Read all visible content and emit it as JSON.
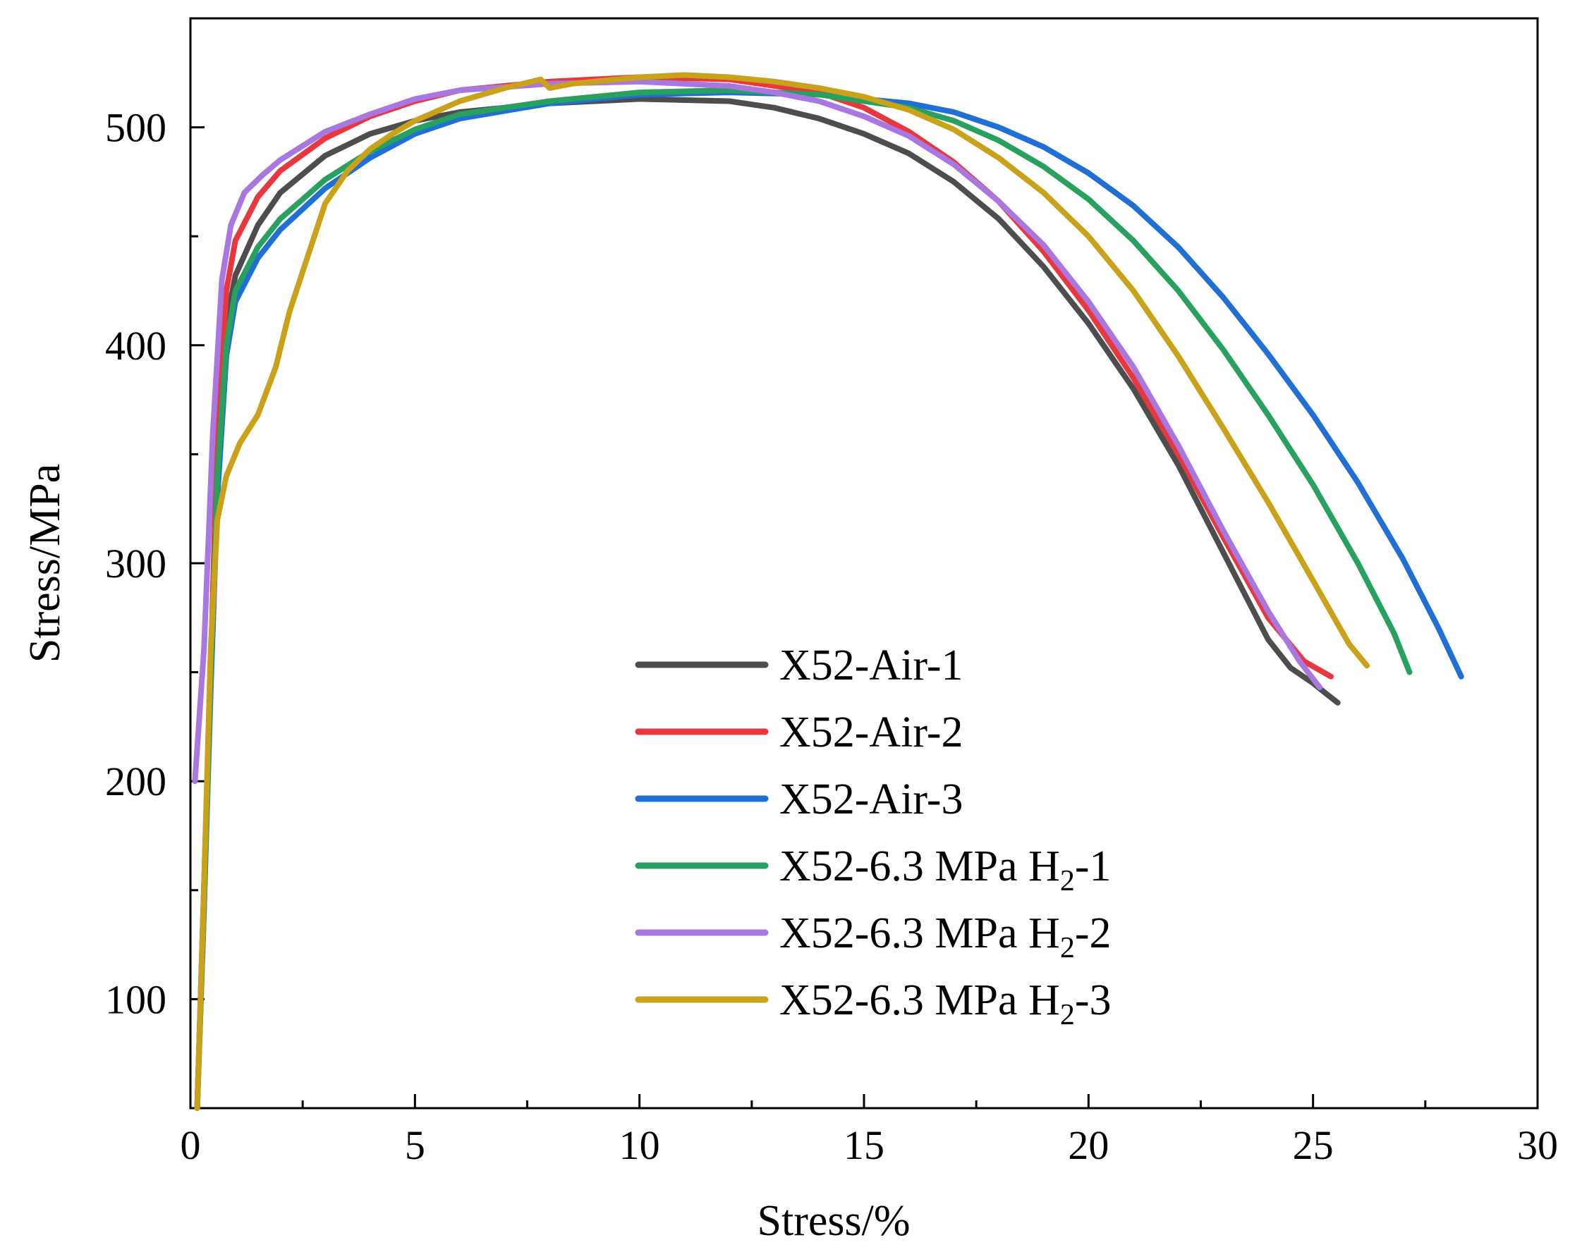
{
  "chart_data": {
    "type": "line",
    "xlabel": "Stress/%",
    "ylabel": "Stress/MPa",
    "xlim": [
      0,
      30
    ],
    "ylim": [
      50,
      550
    ],
    "x_ticks": [
      0,
      5,
      10,
      15,
      20,
      25,
      30
    ],
    "y_ticks": [
      100,
      200,
      300,
      400,
      500
    ],
    "x_tick_labels": [
      "0",
      "5",
      "10",
      "15",
      "20",
      "25",
      "30"
    ],
    "y_tick_labels": [
      "100",
      "200",
      "300",
      "400",
      "500"
    ],
    "grid": false,
    "legend_position": "bottom-right",
    "series": [
      {
        "name": "X52-Air-1",
        "label_main": "X52-Air-1",
        "label_sub": "",
        "label_tail": "",
        "color": "#4d4d4d",
        "points": [
          [
            0.15,
            50
          ],
          [
            0.3,
            150
          ],
          [
            0.45,
            250
          ],
          [
            0.6,
            350
          ],
          [
            0.8,
            410
          ],
          [
            1.0,
            432
          ],
          [
            1.5,
            455
          ],
          [
            2.0,
            470
          ],
          [
            3.0,
            487
          ],
          [
            4.0,
            497
          ],
          [
            5.0,
            503
          ],
          [
            6.0,
            507
          ],
          [
            8.0,
            511
          ],
          [
            10.0,
            513
          ],
          [
            12.0,
            512
          ],
          [
            13.0,
            509
          ],
          [
            14.0,
            504
          ],
          [
            15.0,
            497
          ],
          [
            16.0,
            488
          ],
          [
            17.0,
            475
          ],
          [
            18.0,
            458
          ],
          [
            19.0,
            436
          ],
          [
            20.0,
            410
          ],
          [
            21.0,
            380
          ],
          [
            22.0,
            345
          ],
          [
            23.0,
            305
          ],
          [
            24.0,
            265
          ],
          [
            24.5,
            252
          ],
          [
            25.0,
            245
          ],
          [
            25.3,
            240
          ],
          [
            25.55,
            236
          ]
        ]
      },
      {
        "name": "X52-Air-2",
        "label_main": "X52-Air-2",
        "label_sub": "",
        "label_tail": "",
        "color": "#e8383d",
        "points": [
          [
            0.15,
            50
          ],
          [
            0.3,
            150
          ],
          [
            0.45,
            250
          ],
          [
            0.6,
            360
          ],
          [
            0.8,
            425
          ],
          [
            1.0,
            448
          ],
          [
            1.5,
            468
          ],
          [
            2.0,
            480
          ],
          [
            3.0,
            495
          ],
          [
            4.0,
            505
          ],
          [
            5.0,
            512
          ],
          [
            6.0,
            517
          ],
          [
            8.0,
            521
          ],
          [
            10.0,
            523
          ],
          [
            12.0,
            522
          ],
          [
            14.0,
            516
          ],
          [
            15.0,
            509
          ],
          [
            16.0,
            498
          ],
          [
            17.0,
            484
          ],
          [
            18.0,
            466
          ],
          [
            19.0,
            443
          ],
          [
            20.0,
            416
          ],
          [
            21.0,
            385
          ],
          [
            22.0,
            350
          ],
          [
            23.0,
            312
          ],
          [
            24.0,
            275
          ],
          [
            24.8,
            255
          ],
          [
            25.4,
            248
          ]
        ]
      },
      {
        "name": "X52-Air-3",
        "label_main": "X52-Air-3",
        "label_sub": "",
        "label_tail": "",
        "color": "#1f6fd6",
        "points": [
          [
            0.15,
            50
          ],
          [
            0.3,
            140
          ],
          [
            0.45,
            240
          ],
          [
            0.6,
            330
          ],
          [
            0.8,
            395
          ],
          [
            1.0,
            420
          ],
          [
            1.5,
            440
          ],
          [
            2.0,
            453
          ],
          [
            3.0,
            472
          ],
          [
            4.0,
            486
          ],
          [
            5.0,
            497
          ],
          [
            6.0,
            504
          ],
          [
            8.0,
            511
          ],
          [
            10.0,
            515
          ],
          [
            12.0,
            516
          ],
          [
            14.0,
            515
          ],
          [
            16.0,
            511
          ],
          [
            17.0,
            507
          ],
          [
            18.0,
            500
          ],
          [
            19.0,
            491
          ],
          [
            20.0,
            479
          ],
          [
            21.0,
            464
          ],
          [
            22.0,
            445
          ],
          [
            23.0,
            422
          ],
          [
            24.0,
            396
          ],
          [
            25.0,
            368
          ],
          [
            26.0,
            337
          ],
          [
            27.0,
            302
          ],
          [
            27.8,
            270
          ],
          [
            28.3,
            248
          ]
        ]
      },
      {
        "name": "X52-6.3 MPa H2-1",
        "label_main": "X52-6.3 MPa H",
        "label_sub": "2",
        "label_tail": "-1",
        "color": "#27a060",
        "points": [
          [
            0.15,
            50
          ],
          [
            0.3,
            140
          ],
          [
            0.45,
            245
          ],
          [
            0.6,
            340
          ],
          [
            0.8,
            400
          ],
          [
            1.0,
            425
          ],
          [
            1.5,
            445
          ],
          [
            2.0,
            458
          ],
          [
            3.0,
            476
          ],
          [
            4.0,
            489
          ],
          [
            5.0,
            499
          ],
          [
            6.0,
            506
          ],
          [
            8.0,
            512
          ],
          [
            10.0,
            516
          ],
          [
            12.0,
            517
          ],
          [
            14.0,
            515
          ],
          [
            16.0,
            509
          ],
          [
            17.0,
            503
          ],
          [
            18.0,
            494
          ],
          [
            19.0,
            482
          ],
          [
            20.0,
            467
          ],
          [
            21.0,
            448
          ],
          [
            22.0,
            425
          ],
          [
            23.0,
            398
          ],
          [
            24.0,
            368
          ],
          [
            25.0,
            336
          ],
          [
            26.0,
            300
          ],
          [
            26.8,
            268
          ],
          [
            27.15,
            250
          ]
        ]
      },
      {
        "name": "X52-6.3 MPa H2-2",
        "label_main": "X52-6.3 MPa H",
        "label_sub": "2",
        "label_tail": "-2",
        "color": "#a877e0",
        "points": [
          [
            0.1,
            200
          ],
          [
            0.3,
            260
          ],
          [
            0.5,
            360
          ],
          [
            0.7,
            430
          ],
          [
            0.9,
            455
          ],
          [
            1.2,
            470
          ],
          [
            1.6,
            478
          ],
          [
            2.0,
            485
          ],
          [
            3.0,
            498
          ],
          [
            4.0,
            506
          ],
          [
            5.0,
            513
          ],
          [
            6.0,
            517
          ],
          [
            8.0,
            520
          ],
          [
            10.0,
            521
          ],
          [
            12.0,
            519
          ],
          [
            13.0,
            516
          ],
          [
            14.0,
            512
          ],
          [
            15.0,
            505
          ],
          [
            16.0,
            496
          ],
          [
            17.0,
            483
          ],
          [
            18.0,
            466
          ],
          [
            19.0,
            446
          ],
          [
            20.0,
            420
          ],
          [
            21.0,
            390
          ],
          [
            22.0,
            354
          ],
          [
            23.0,
            315
          ],
          [
            24.0,
            278
          ],
          [
            24.7,
            255
          ],
          [
            25.15,
            243
          ]
        ]
      },
      {
        "name": "X52-6.3 MPa H2-3",
        "label_main": "X52-6.3 MPa H",
        "label_sub": "2",
        "label_tail": "-3",
        "color": "#c9a21a",
        "points": [
          [
            0.15,
            50
          ],
          [
            0.3,
            150
          ],
          [
            0.45,
            260
          ],
          [
            0.6,
            320
          ],
          [
            0.8,
            340
          ],
          [
            1.1,
            355
          ],
          [
            1.5,
            368
          ],
          [
            1.9,
            390
          ],
          [
            2.2,
            415
          ],
          [
            2.6,
            440
          ],
          [
            3.0,
            465
          ],
          [
            3.5,
            480
          ],
          [
            4.0,
            490
          ],
          [
            4.5,
            497
          ],
          [
            5.0,
            503
          ],
          [
            6.0,
            512
          ],
          [
            7.0,
            518
          ],
          [
            7.8,
            522
          ],
          [
            8.0,
            518
          ],
          [
            8.5,
            520
          ],
          [
            9.0,
            521
          ],
          [
            10.0,
            523
          ],
          [
            11.0,
            524
          ],
          [
            12.0,
            523
          ],
          [
            13.0,
            521
          ],
          [
            14.0,
            518
          ],
          [
            15.0,
            514
          ],
          [
            16.0,
            508
          ],
          [
            17.0,
            499
          ],
          [
            18.0,
            486
          ],
          [
            19.0,
            470
          ],
          [
            20.0,
            450
          ],
          [
            21.0,
            425
          ],
          [
            22.0,
            395
          ],
          [
            23.0,
            362
          ],
          [
            24.0,
            328
          ],
          [
            25.0,
            292
          ],
          [
            25.8,
            263
          ],
          [
            26.2,
            253
          ]
        ]
      }
    ]
  }
}
